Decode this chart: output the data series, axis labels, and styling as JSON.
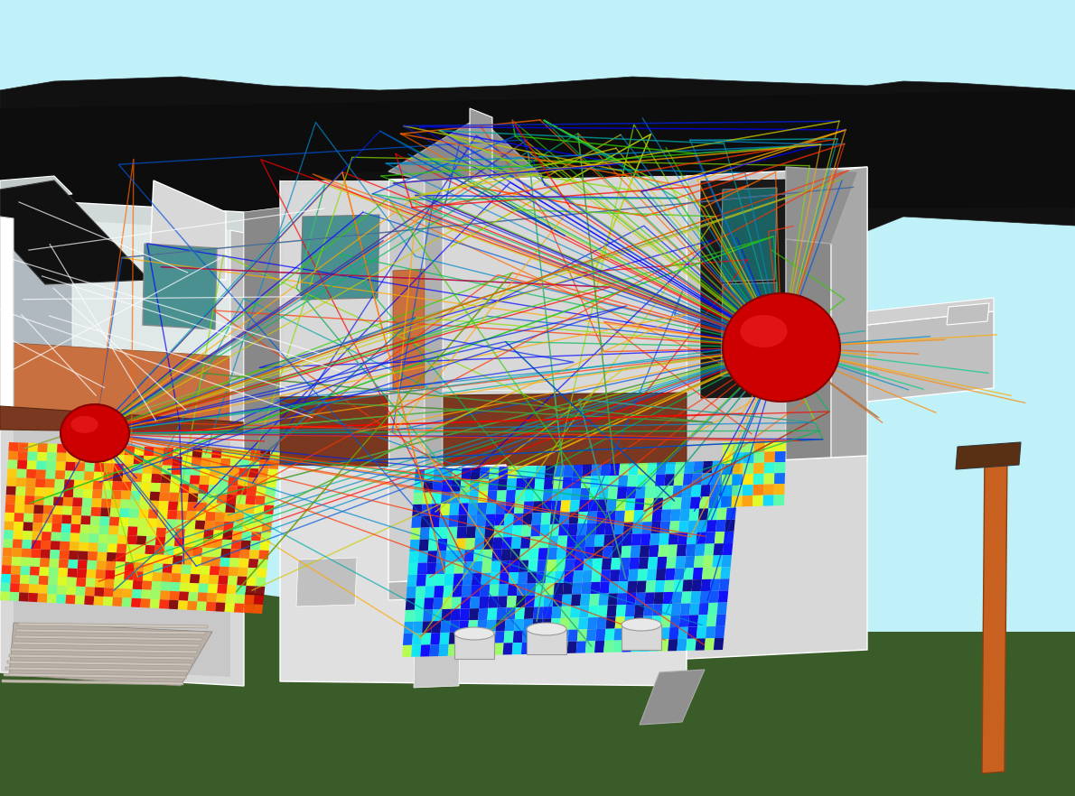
{
  "bg_color": "#c8f0f0",
  "ground_color": "#3a5c28",
  "sky_color": "#c0f0f8",
  "wall_light": "#d8d8d8",
  "wall_mid": "#b8b8b8",
  "wall_dark": "#909090",
  "roof_color": "#111111",
  "brown_floor": "#7a3820",
  "interior_orange": "#c87040",
  "window_teal": "#4a9090",
  "sphere_color": "#cc0000",
  "sphere_hi": "#ff3333",
  "prop_colors": [
    "#0000ff",
    "#0020ee",
    "#0055dd",
    "#0088cc",
    "#00aaaa",
    "#00bb55",
    "#33cc00",
    "#88dd00",
    "#cccc00",
    "#ffaa00",
    "#ff6600",
    "#ff3300",
    "#ff0000"
  ],
  "seed": 7
}
